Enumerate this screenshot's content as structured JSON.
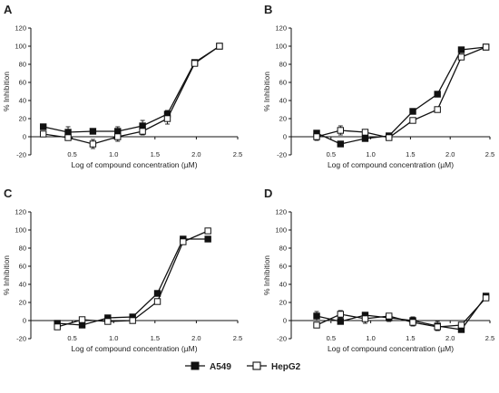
{
  "legend": {
    "a549": "A549",
    "hepg2": "HepG2"
  },
  "colors": {
    "line": "#111111",
    "filled": "#111111",
    "open": "#ffffff"
  },
  "chart_data": [
    {
      "type": "line",
      "panel": "A",
      "xlabel": "Log of compound concentration (µM)",
      "ylabel": "% Inhibition",
      "xlim": [
        0,
        2.5
      ],
      "ylim": [
        -20,
        120
      ],
      "xticks": [
        "0.5",
        "1.0",
        "1.5",
        "2.0",
        "2.5"
      ],
      "yticks": [
        "-20",
        "0",
        "20",
        "40",
        "60",
        "80",
        "100",
        "120"
      ],
      "series": [
        {
          "name": "A549",
          "marker": "filled-square",
          "x": [
            0.15,
            0.45,
            0.75,
            1.05,
            1.35,
            1.65,
            1.98,
            2.28
          ],
          "y": [
            11,
            5,
            6,
            6,
            12,
            25,
            82,
            100
          ],
          "err": [
            3,
            6,
            3,
            5,
            6,
            4,
            2,
            1
          ]
        },
        {
          "name": "HepG2",
          "marker": "open-square",
          "x": [
            0.15,
            0.45,
            0.75,
            1.05,
            1.35,
            1.65,
            1.98,
            2.28
          ],
          "y": [
            3,
            -1,
            -8,
            0,
            6,
            20,
            81,
            100
          ],
          "err": [
            2,
            3,
            5,
            5,
            4,
            6,
            2,
            2
          ]
        }
      ]
    },
    {
      "type": "line",
      "panel": "B",
      "xlabel": "Log of compound concentration (µM)",
      "ylabel": "% Inhibition",
      "xlim": [
        0,
        2.5
      ],
      "ylim": [
        -20,
        120
      ],
      "xticks": [
        "0.5",
        "1.0",
        "1.5",
        "2.0",
        "2.5"
      ],
      "yticks": [
        "-20",
        "0",
        "20",
        "40",
        "60",
        "80",
        "100",
        "120"
      ],
      "series": [
        {
          "name": "A549",
          "marker": "filled-square",
          "x": [
            0.32,
            0.62,
            0.93,
            1.23,
            1.53,
            1.84,
            2.14,
            2.45
          ],
          "y": [
            4,
            -8,
            -2,
            1,
            28,
            47,
            96,
            99
          ],
          "err": [
            3,
            2,
            2,
            2,
            2,
            3,
            1,
            1
          ]
        },
        {
          "name": "HepG2",
          "marker": "open-square",
          "x": [
            0.32,
            0.62,
            0.93,
            1.23,
            1.53,
            1.84,
            2.14,
            2.45
          ],
          "y": [
            0,
            7,
            5,
            -1,
            18,
            30,
            88,
            99
          ],
          "err": [
            4,
            5,
            3,
            3,
            2,
            2,
            3,
            1
          ]
        }
      ]
    },
    {
      "type": "line",
      "panel": "C",
      "xlabel": "Log of compound concentration (µM)",
      "ylabel": "% Inhibition",
      "xlim": [
        0,
        2.5
      ],
      "ylim": [
        -20,
        120
      ],
      "xticks": [
        "0.5",
        "1.0",
        "1.5",
        "2.0",
        "2.5"
      ],
      "yticks": [
        "-20",
        "0",
        "20",
        "40",
        "60",
        "80",
        "100",
        "120"
      ],
      "series": [
        {
          "name": "A549",
          "marker": "filled-square",
          "x": [
            0.32,
            0.62,
            0.93,
            1.23,
            1.53,
            1.84,
            2.14
          ],
          "y": [
            -3,
            -5,
            3,
            4,
            30,
            90,
            90
          ],
          "err": [
            3,
            3,
            2,
            3,
            2,
            2,
            1
          ]
        },
        {
          "name": "HepG2",
          "marker": "open-square",
          "x": [
            0.32,
            0.62,
            0.93,
            1.23,
            1.53,
            1.84,
            2.14
          ],
          "y": [
            -7,
            1,
            -1,
            0,
            21,
            87,
            99
          ],
          "err": [
            3,
            3,
            2,
            3,
            3,
            3,
            1
          ]
        }
      ]
    },
    {
      "type": "line",
      "panel": "D",
      "xlabel": "Log of compound concentration (µM)",
      "ylabel": "% Inhibition",
      "xlim": [
        0,
        2.5
      ],
      "ylim": [
        -20,
        120
      ],
      "xticks": [
        "0.5",
        "1.0",
        "1.5",
        "2.0",
        "2.5"
      ],
      "yticks": [
        "-20",
        "0",
        "20",
        "40",
        "60",
        "80",
        "100",
        "120"
      ],
      "series": [
        {
          "name": "A549",
          "marker": "filled-square",
          "x": [
            0.32,
            0.62,
            0.93,
            1.23,
            1.53,
            1.84,
            2.14,
            2.45
          ],
          "y": [
            5,
            -1,
            6,
            3,
            0,
            -6,
            -10,
            27
          ],
          "err": [
            5,
            3,
            3,
            4,
            4,
            5,
            2,
            2
          ]
        },
        {
          "name": "HepG2",
          "marker": "open-square",
          "x": [
            0.32,
            0.62,
            0.93,
            1.23,
            1.53,
            1.84,
            2.14,
            2.45
          ],
          "y": [
            -5,
            7,
            2,
            5,
            -2,
            -7,
            -5,
            25
          ],
          "err": [
            2,
            4,
            5,
            3,
            4,
            4,
            3,
            2
          ]
        }
      ]
    }
  ]
}
